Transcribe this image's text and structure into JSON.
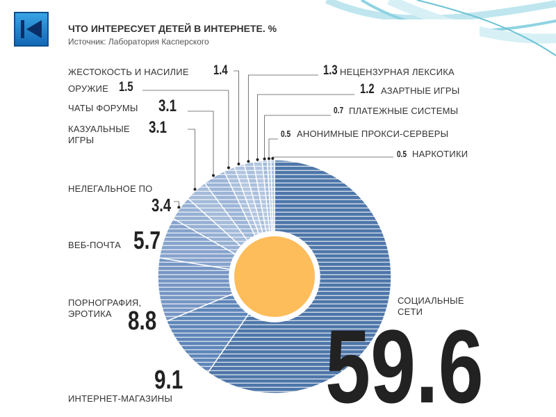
{
  "chart_data": {
    "type": "pie",
    "title": "ЧТО ИНТЕРЕСУЕТ ДЕТЕЙ В ИНТЕРНЕТЕ. %",
    "subtitle": "Источник: Лаборатория Касперского",
    "categories": [
      "СОЦИАЛЬНЫЕ СЕТИ",
      "ИНТЕРНЕТ-МАГАЗИНЫ",
      "ПОРНОГРАФИЯ, ЭРОТИКА",
      "ВЕБ-ПОЧТА",
      "НЕЛЕГАЛЬНОЕ ПО",
      "КАЗУАЛЬНЫЕ ИГРЫ",
      "ЧАТЫ ФОРУМЫ",
      "ОРУЖИЕ",
      "ЖЕСТОКОСТЬ И НАСИЛИЕ",
      "НЕЦЕНЗУРНАЯ ЛЕКСИКА",
      "АЗАРТНЫЕ ИГРЫ",
      "ПЛАТЕЖНЫЕ СИСТЕМЫ",
      "АНОНИМНЫЕ ПРОКСИ-СЕРВЕРЫ",
      "НАРКОТИКИ"
    ],
    "values": [
      59.6,
      9.1,
      8.8,
      5.7,
      3.4,
      3.1,
      3.1,
      1.5,
      1.4,
      1.3,
      1.2,
      0.7,
      0.5,
      0.5
    ],
    "colors": [
      "#4e76a9",
      "#5f86b9",
      "#7696c4",
      "#86a3cc",
      "#96b0d4",
      "#a4bbda",
      "#9cb5d7",
      "#a9bfdc",
      "#b2c6e0",
      "#a9bfdc",
      "#b2c6e0",
      "#a4bbda",
      "#b2c6e0",
      "#a9bfdc"
    ],
    "center_color": "#fdbd5b"
  }
}
